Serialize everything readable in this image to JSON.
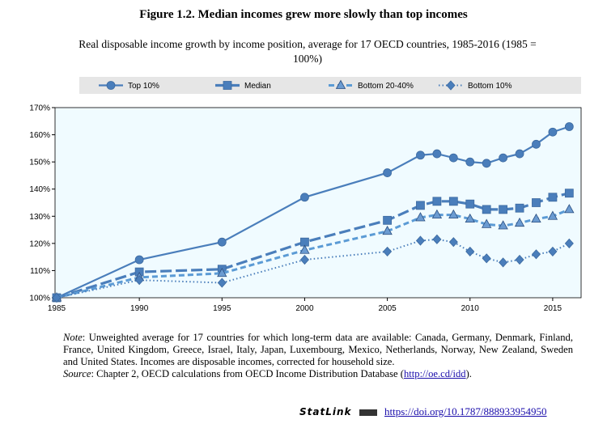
{
  "title": "Figure 1.2. Median incomes grew more slowly than top incomes",
  "subtitle": "Real disposable income growth by income position, average for 17 OECD countries, 1985-2016 (1985 = 100%)",
  "chart_data": {
    "type": "line",
    "x": [
      1985,
      1990,
      1995,
      2000,
      2005,
      2007,
      2008,
      2009,
      2010,
      2011,
      2012,
      2013,
      2014,
      2015,
      2016
    ],
    "series": [
      {
        "name": "Top 10%",
        "marker": "circle",
        "dash": "solid",
        "values": [
          100,
          114,
          120.5,
          137,
          146,
          152.5,
          153,
          151.5,
          150,
          149.5,
          151.5,
          153,
          156.5,
          161,
          163
        ]
      },
      {
        "name": "Median",
        "marker": "square",
        "dash": "longdash",
        "values": [
          100,
          109.5,
          110.5,
          120.5,
          128.5,
          134,
          135.5,
          135.5,
          134.5,
          132.5,
          132.5,
          133,
          135,
          137,
          138.5
        ]
      },
      {
        "name": "Bottom 20-40%",
        "marker": "triangle",
        "dash": "dash",
        "values": [
          100,
          107.5,
          109,
          117.5,
          124.5,
          129.5,
          130.5,
          130.5,
          129,
          127,
          126.5,
          127.5,
          129,
          130,
          132.5
        ]
      },
      {
        "name": "Bottom 10%",
        "marker": "diamond",
        "dash": "dot",
        "values": [
          100,
          106.5,
          105.5,
          114,
          117,
          121,
          121.5,
          120.5,
          117,
          114.5,
          113,
          114,
          116,
          117,
          120
        ]
      }
    ],
    "ylim": [
      100,
      170
    ],
    "yticks": [
      "100%",
      "110%",
      "120%",
      "130%",
      "140%",
      "150%",
      "160%",
      "170%"
    ],
    "xticks": [
      "1985",
      "1990",
      "1995",
      "2000",
      "2005",
      "2010",
      "2015"
    ],
    "legend": "top",
    "grid": false,
    "colors": {
      "line": "#4a7ebb",
      "plot_bg": "#f0fbff",
      "legend_bg": "#e6e6e6"
    }
  },
  "note_label": "Note",
  "note": ": Unweighted average for 17 countries for which long-term data are available: Canada, Germany, Denmark, Finland, France, United Kingdom, Greece, Israel, Italy, Japan, Luxembourg, Mexico, Netherlands, Norway, New Zealand, Sweden and United States. Incomes are disposable incomes, corrected for household size.",
  "source_label": "Source",
  "source": ": Chapter 2, OECD calculations from OECD Income Distribution Database (",
  "source_link": "http://oe.cd/idd",
  "source_end": ").",
  "statlink": "StatLink",
  "doi": "https://doi.org/10.1787/888933954950"
}
